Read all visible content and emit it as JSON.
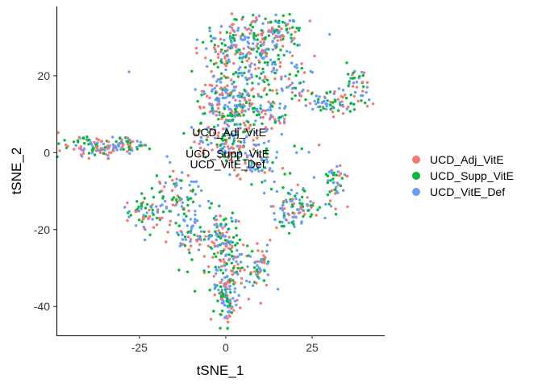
{
  "chart_data": {
    "type": "scatter",
    "title": "",
    "xlabel": "tSNE_1",
    "ylabel": "tSNE_2",
    "xlim": [
      -49,
      46
    ],
    "ylim": [
      -47.5,
      38
    ],
    "xticks": [
      -25,
      0,
      25
    ],
    "yticks": [
      -40,
      -20,
      0,
      20
    ],
    "grid": false,
    "legend_position": "right",
    "point_colors": {
      "UCD_Adj_VitE": "#F8766D",
      "UCD_Supp_VitE": "#00BA38",
      "UCD_VitE_Def": "#619CFF"
    },
    "series": [
      {
        "name": "UCD_Adj_VitE",
        "color": "#F8766D"
      },
      {
        "name": "UCD_Supp_VitE",
        "color": "#00BA38"
      },
      {
        "name": "UCD_VitE_Def",
        "color": "#619CFF"
      }
    ],
    "annotations": [
      {
        "text": "UCD_Adj_VitE",
        "x": 1,
        "y": 4.3
      },
      {
        "text": "UCD_Supp_VitE",
        "x": 0.5,
        "y": -1.3
      },
      {
        "text": "UCD_VitE_Def",
        "x": 0.5,
        "y": -4.0
      }
    ],
    "clusters": [
      {
        "cx": 4,
        "cy": 28,
        "sx": 6,
        "sy": 4,
        "n": 200
      },
      {
        "cx": 14,
        "cy": 22,
        "sx": 5,
        "sy": 6,
        "n": 120
      },
      {
        "cx": 16,
        "cy": 32,
        "sx": 2.5,
        "sy": 1.5,
        "n": 50
      },
      {
        "cx": 0,
        "cy": 13,
        "sx": 3.5,
        "sy": 4,
        "n": 160
      },
      {
        "cx": 7,
        "cy": 11,
        "sx": 5,
        "sy": 4,
        "n": 100
      },
      {
        "cx": 0,
        "cy": 2,
        "sx": 5,
        "sy": 2.5,
        "n": 110
      },
      {
        "cx": 10,
        "cy": -3,
        "sx": 4,
        "sy": 2.5,
        "n": 60
      },
      {
        "cx": -37,
        "cy": 1.5,
        "sx": 5.5,
        "sy": 1.5,
        "n": 110
      },
      {
        "cx": -29,
        "cy": 2,
        "sx": 3,
        "sy": 1,
        "n": 40
      },
      {
        "cx": -15,
        "cy": -11,
        "sx": 4,
        "sy": 3,
        "n": 70
      },
      {
        "cx": -24,
        "cy": -16,
        "sx": 3,
        "sy": 2.5,
        "n": 60
      },
      {
        "cx": -10,
        "cy": -20,
        "sx": 3,
        "sy": 3.5,
        "n": 70
      },
      {
        "cx": -2,
        "cy": -22,
        "sx": 3,
        "sy": 3,
        "n": 80
      },
      {
        "cx": 1,
        "cy": -30,
        "sx": 3,
        "sy": 4,
        "n": 110
      },
      {
        "cx": 0,
        "cy": -38,
        "sx": 1.8,
        "sy": 3,
        "n": 80
      },
      {
        "cx": 10,
        "cy": -29,
        "sx": 1.8,
        "sy": 3,
        "n": 50
      },
      {
        "cx": 20,
        "cy": -14,
        "sx": 4,
        "sy": 3,
        "n": 100
      },
      {
        "cx": 32,
        "cy": -8,
        "sx": 1.8,
        "sy": 2.5,
        "n": 40
      },
      {
        "cx": 31,
        "cy": 13,
        "sx": 4,
        "sy": 1.5,
        "n": 70
      },
      {
        "cx": 38,
        "cy": 18,
        "sx": 1.5,
        "sy": 1.5,
        "n": 30
      },
      {
        "cx": 22,
        "cy": 16,
        "sx": 2,
        "sy": 1.5,
        "n": 20
      },
      {
        "cx": 16,
        "cy": 9,
        "sx": 1.5,
        "sy": 1.5,
        "n": 15
      }
    ]
  }
}
